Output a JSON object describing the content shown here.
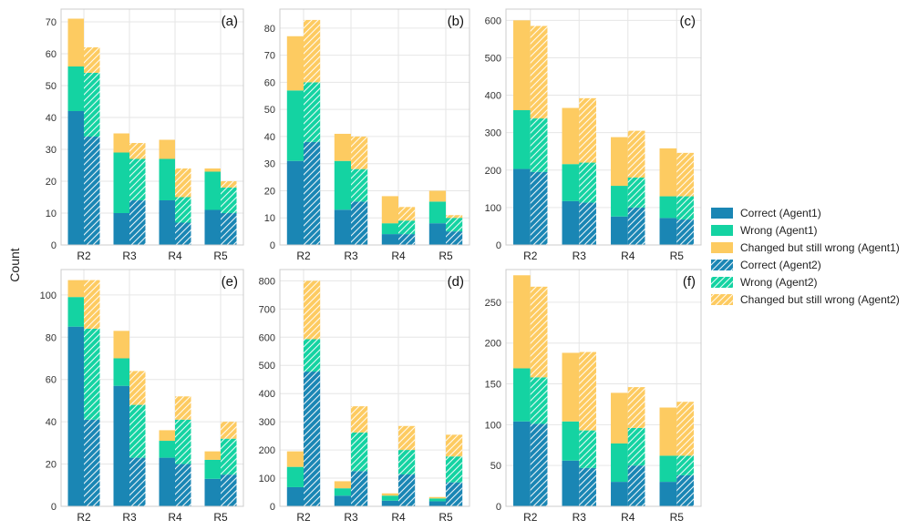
{
  "chart_data": {
    "type": "bar",
    "ylabel": "Count",
    "categories": [
      "R2",
      "R3",
      "R4",
      "R5"
    ],
    "colors": {
      "correct": "#1a86b4",
      "wrong": "#14d3a2",
      "changed": "#fdcb61",
      "grid": "#e6e6e6",
      "frame": "#cccccc"
    },
    "legend": {
      "placement": "right",
      "entries": [
        {
          "label": "Correct (Agent1)",
          "key": "correct",
          "hatched": false
        },
        {
          "label": "Wrong (Agent1)",
          "key": "wrong",
          "hatched": false
        },
        {
          "label": "Changed but still wrong (Agent1)",
          "key": "changed",
          "hatched": false
        },
        {
          "label": "Correct (Agent2)",
          "key": "correct",
          "hatched": true
        },
        {
          "label": "Wrong (Agent2)",
          "key": "wrong",
          "hatched": true
        },
        {
          "label": "Changed but still wrong (Agent2)",
          "key": "changed",
          "hatched": true
        }
      ]
    },
    "panels": [
      {
        "label": "(a)",
        "ylim": [
          0,
          74
        ],
        "yticks": [
          0,
          10,
          20,
          30,
          40,
          50,
          60,
          70
        ],
        "agent1": {
          "correct": [
            42,
            10,
            14,
            11
          ],
          "wrong": [
            14,
            19,
            13,
            12
          ],
          "changed": [
            15,
            6,
            6,
            1
          ]
        },
        "agent2": {
          "correct": [
            34,
            14,
            7,
            10
          ],
          "wrong": [
            20,
            13,
            8,
            8
          ],
          "changed": [
            8,
            5,
            9,
            2
          ]
        }
      },
      {
        "label": "(b)",
        "ylim": [
          0,
          87
        ],
        "yticks": [
          0,
          10,
          20,
          30,
          40,
          50,
          60,
          70,
          80
        ],
        "agent1": {
          "correct": [
            31,
            13,
            4,
            8
          ],
          "wrong": [
            26,
            18,
            4,
            8
          ],
          "changed": [
            20,
            10,
            10,
            4
          ]
        },
        "agent2": {
          "correct": [
            38,
            16,
            4,
            5
          ],
          "wrong": [
            22,
            12,
            5,
            5
          ],
          "changed": [
            23,
            12,
            5,
            1
          ]
        }
      },
      {
        "label": "(c)",
        "ylim": [
          0,
          630
        ],
        "yticks": [
          0,
          100,
          200,
          300,
          400,
          500,
          600
        ],
        "agent1": {
          "correct": [
            203,
            117,
            76,
            72
          ],
          "wrong": [
            157,
            99,
            82,
            58
          ],
          "changed": [
            240,
            150,
            130,
            128
          ]
        },
        "agent2": {
          "correct": [
            195,
            113,
            100,
            68
          ],
          "wrong": [
            143,
            107,
            80,
            62
          ],
          "changed": [
            247,
            172,
            125,
            116
          ]
        }
      },
      {
        "label": "(e)",
        "ylim": [
          0,
          112
        ],
        "yticks": [
          0,
          20,
          40,
          60,
          80,
          100
        ],
        "agent1": {
          "correct": [
            85,
            57,
            23,
            13
          ],
          "wrong": [
            14,
            13,
            8,
            9
          ],
          "changed": [
            8,
            13,
            5,
            4
          ]
        },
        "agent2": {
          "correct": [
            41,
            23,
            20,
            15
          ],
          "wrong": [
            43,
            25,
            21,
            17
          ],
          "changed": [
            23,
            16,
            11,
            8
          ]
        }
      },
      {
        "label": "(d)",
        "ylim": [
          0,
          840
        ],
        "yticks": [
          0,
          100,
          200,
          300,
          400,
          500,
          600,
          700,
          800
        ],
        "agent1": {
          "correct": [
            68,
            38,
            20,
            18
          ],
          "wrong": [
            72,
            26,
            18,
            10
          ],
          "changed": [
            55,
            25,
            8,
            5
          ]
        },
        "agent2": {
          "correct": [
            478,
            125,
            113,
            85
          ],
          "wrong": [
            115,
            137,
            87,
            92
          ],
          "changed": [
            207,
            93,
            85,
            77
          ]
        }
      },
      {
        "label": "(f)",
        "ylim": [
          0,
          290
        ],
        "yticks": [
          0,
          50,
          100,
          150,
          200,
          250
        ],
        "agent1": {
          "correct": [
            104,
            56,
            30,
            30
          ],
          "wrong": [
            65,
            48,
            47,
            32
          ],
          "changed": [
            114,
            84,
            62,
            59
          ]
        },
        "agent2": {
          "correct": [
            101,
            47,
            50,
            38
          ],
          "wrong": [
            57,
            46,
            46,
            24
          ],
          "changed": [
            111,
            96,
            50,
            66
          ]
        }
      }
    ]
  }
}
